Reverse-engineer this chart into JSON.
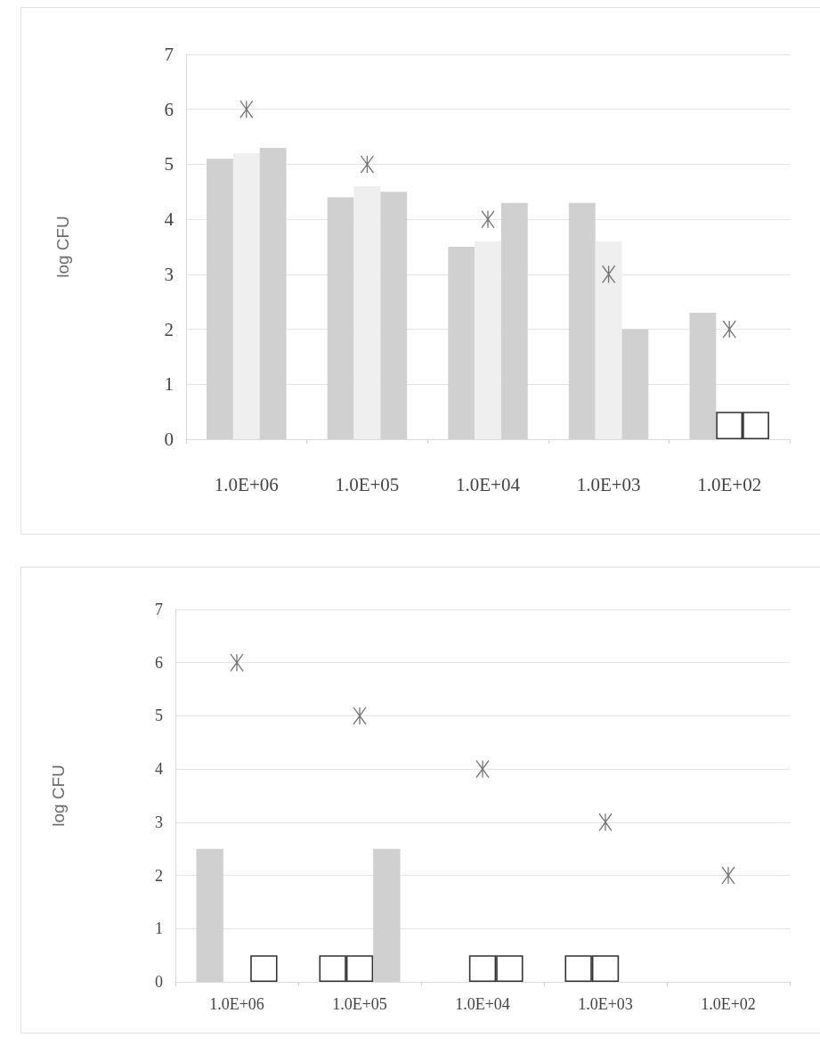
{
  "chart_data": [
    {
      "type": "bar",
      "ylabel": "log CFU",
      "categories": [
        "1.0E+06",
        "1.0E+05",
        "1.0E+04",
        "1.0E+03",
        "1.0E+02"
      ],
      "series": [
        {
          "color": "#d0d0d0",
          "values": [
            5.1,
            4.4,
            3.5,
            4.3,
            2.3
          ]
        },
        {
          "colors": [
            "#efefef",
            "#efefef",
            "#efefef",
            "#efefef",
            "#ffffff"
          ],
          "values": [
            5.2,
            4.6,
            3.6,
            3.6,
            0.5
          ]
        },
        {
          "colors": [
            "#d0d0d0",
            "#d0d0d0",
            "#d0d0d0",
            "#d0d0d0",
            "#ffffff"
          ],
          "values": [
            5.3,
            4.5,
            4.3,
            2.0,
            0.5
          ]
        },
        {
          "type": "scatter",
          "color": "#555555",
          "x": [
            "1.0E+06",
            "1.0E+05",
            "1.0E+04",
            "1.0E+03",
            "1.0E+02"
          ],
          "values": [
            6,
            5,
            4,
            3,
            2
          ]
        }
      ],
      "ylim": [
        0,
        7
      ],
      "yticks": [
        0,
        1,
        2,
        3,
        4,
        5,
        6,
        7
      ],
      "grid": "y",
      "marker": "cross"
    },
    {
      "type": "bar",
      "ylabel": "log CFU",
      "categories": [
        "1.0E+06",
        "1.0E+05",
        "1.0E+04",
        "1.0E+03",
        "1.0E+02"
      ],
      "series": [
        {
          "colors": [
            "#d0d0d0",
            "#ffffff",
            null,
            "#ffffff",
            null
          ],
          "values": [
            2.5,
            0.5,
            null,
            0.5,
            null
          ]
        },
        {
          "color": "#ffffff",
          "values": [
            null,
            0.5,
            0.5,
            0.5,
            null
          ]
        },
        {
          "colors": [
            "#ffffff",
            "#d0d0d0",
            "#ffffff",
            null,
            null
          ],
          "values": [
            0.5,
            2.5,
            0.5,
            null,
            null
          ]
        },
        {
          "type": "scatter",
          "color": "#555555",
          "x": [
            "1.0E+06",
            "1.0E+05",
            "1.0E+04",
            "1.0E+03",
            "1.0E+02"
          ],
          "values": [
            6,
            5,
            4,
            3,
            2
          ]
        }
      ],
      "ylim": [
        0,
        7
      ],
      "yticks": [
        0,
        1,
        2,
        3,
        4,
        5,
        6,
        7
      ],
      "grid": "y",
      "marker": "cross"
    }
  ]
}
